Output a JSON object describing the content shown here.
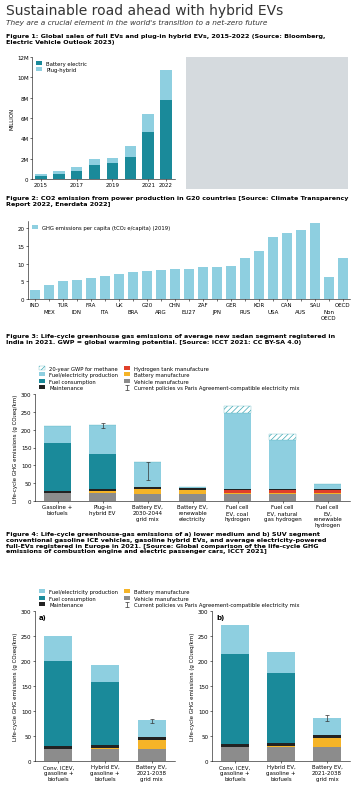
{
  "title": "Sustainable road ahead with hybrid EVs",
  "subtitle": "They are a crucial element in the world's transition to a net-zero future",
  "chart_data": [
    {
      "type": "bar",
      "stacked": true,
      "title": "Figure 1: Global sales of full EVs and plug-in hybrid EVs, 2015-2022 (Source: Bloomberg, Electric Vehicle Outlook 2023)",
      "y_label": "MILLION",
      "categories": [
        "2015",
        null,
        "2017",
        null,
        "2019",
        null,
        "2021",
        "2022"
      ],
      "series": [
        {
          "name": "Battery electric",
          "color": "#1a8a9a",
          "values": [
            0.3,
            0.45,
            0.8,
            1.4,
            1.6,
            2.2,
            4.6,
            7.8
          ]
        },
        {
          "name": "Plug-hybrid",
          "color": "#8ecfe0",
          "values": [
            0.2,
            0.3,
            0.4,
            0.6,
            0.5,
            1.0,
            1.8,
            2.9
          ]
        }
      ],
      "ylim": [
        0,
        12
      ],
      "yticks": [
        0,
        {
          "value": 2,
          "label": "2M"
        },
        {
          "value": 4,
          "label": "4M"
        },
        {
          "value": 6,
          "label": "6M"
        },
        {
          "value": 8,
          "label": "8M"
        },
        {
          "value": 10,
          "label": "10M"
        },
        {
          "value": 12,
          "label": "12M"
        }
      ],
      "legend": "upper left"
    },
    {
      "type": "bar",
      "stacked": false,
      "title": "Figure 2: CO2 emission from power production in G20 countries [Source: Climate Transparency Report 2022, Enerdata 2022]",
      "categories": [
        "IND",
        "MEX",
        "TUR",
        "IDN",
        "FRA",
        "ITA",
        "UK",
        "BRA",
        "G20",
        "ARG",
        "CHN",
        "EU27",
        "ZAF",
        "JPN",
        "GER",
        "RUS",
        "KOR",
        "USA",
        "CAN",
        "AUS",
        "SAU",
        "Non OECD",
        "OECD"
      ],
      "series": [
        {
          "name": "GHG emissions per capita (tCO₂ e/capita) (2019)",
          "color": "#8ecfe0",
          "values": [
            2.5,
            4,
            5,
            5.5,
            6,
            6.5,
            7,
            7.5,
            8,
            8.2,
            8.5,
            8.5,
            9,
            9,
            9.2,
            11.5,
            13.5,
            17.5,
            18.5,
            19.5,
            21.5,
            6.3,
            11.5
          ]
        }
      ],
      "ylim": [
        0,
        22
      ],
      "yticks": [
        0,
        5,
        10,
        15,
        20
      ],
      "legend": "upper left"
    },
    {
      "type": "bar",
      "stacked": true,
      "title": "Figure 3: Life-cycle greenhouse gas emissions of average new sedan segment registered in India in 2021. GWP = global warming potential. [Source: ICCT 2021: CC BY-SA 4.0)",
      "y_label": "Life-cycle GHG emissions (g CO₂eq/km)",
      "categories": [
        "Gasoline + biofuels",
        "Plug-in hybrid EV",
        "Battery EV, 2030-2044 grid mix",
        "Battery EV, renewable electricity",
        "Fuel cell EV, coal hydrogen",
        "Fuel cell EV, natural gas hydrogen",
        "Fuel cell EV, renewable hydrogen"
      ],
      "series": [
        {
          "name": "Vehicle manufacture",
          "color": "#8c8c8c",
          "values": [
            22,
            22,
            20,
            20,
            20,
            20,
            20
          ]
        },
        {
          "name": "Battery manufacture",
          "color": "#f5b428",
          "values": [
            0,
            6,
            14,
            12,
            3,
            3,
            3
          ]
        },
        {
          "name": "Hydrogen tank manufacture",
          "color": "#e0402a",
          "values": [
            0,
            0,
            0,
            0,
            8,
            8,
            8
          ]
        },
        {
          "name": "Maintenance",
          "color": "#222222",
          "values": [
            5,
            5,
            4,
            4,
            4,
            4,
            4
          ]
        },
        {
          "name": "Fuel consumption",
          "color": "#1a8a9a",
          "values": [
            135,
            100,
            0,
            0,
            0,
            0,
            0
          ]
        },
        {
          "name": "Fuel/electricity production",
          "color": "#8ecfe0",
          "values": [
            48,
            79,
            70,
            3,
            213,
            135,
            12
          ]
        },
        {
          "name": "20-year GWP for methane",
          "color": "#3fa9b5",
          "line_style": "hatched",
          "values": [
            0,
            0,
            0,
            0,
            17,
            18,
            0
          ]
        }
      ],
      "error_ranges": [
        null,
        [
          204,
          218
        ],
        [
          60,
          108
        ],
        null,
        null,
        null,
        null
      ],
      "error_label": "Current policies vs Paris Agreement-compatible electricity mix",
      "ylim": [
        0,
        300
      ],
      "yticks": [
        0,
        50,
        100,
        150,
        200,
        250,
        300
      ],
      "legend": "lower left"
    },
    {
      "type": "bar",
      "stacked": true,
      "title": "Figure 4: Life-cycle greenhouse-gas emissions of a) lower medium and b) SUV segment conventional gasoline ICE vehicles, gasoline hybrid EVs, and average electricity-powered full-EVs registered in Europe in 2021. [Source: Global comparison of the life-cycle GHG emissions of combustion engine and electric passenger cars, ICCT 2021]",
      "annotations": [
        "a)"
      ],
      "y_label": "Life-cycle GHG emissions (g CO₂eq/km)",
      "categories": [
        "Conv. ICEV, gasoline + biofuels",
        "Hybrid EV, gasoline + biofuels",
        "Battery EV, 2021-2038 grid mix"
      ],
      "series": [
        {
          "name": "Vehicle manufacture",
          "color": "#8c8c8c",
          "values": [
            25,
            25,
            25
          ]
        },
        {
          "name": "Battery manufacture",
          "color": "#f5b428",
          "values": [
            0,
            2,
            17
          ]
        },
        {
          "name": "Maintenance",
          "color": "#222222",
          "values": [
            6,
            6,
            6
          ]
        },
        {
          "name": "Fuel consumption",
          "color": "#1a8a9a",
          "values": [
            170,
            125,
            0
          ]
        },
        {
          "name": "Fuel/electricity production",
          "color": "#8ecfe0",
          "values": [
            50,
            35,
            34
          ]
        }
      ],
      "error_ranges": [
        null,
        null,
        [
          76,
          84
        ]
      ],
      "error_label": "Current policies vs Paris Agreement-compatible electricity mix",
      "ylim": [
        0,
        300
      ],
      "yticks": [
        0,
        50,
        100,
        150,
        200,
        250,
        300
      ],
      "legend": "lower left"
    },
    {
      "type": "bar",
      "stacked": true,
      "annotations": [
        "b)"
      ],
      "y_label": "Life-cycle GHG emissions (g CO₂eq/km)",
      "categories": [
        "Conv. ICEV, gasoline + biofuels",
        "Hybrid EV, gasoline + biofuels",
        "Battery EV, 2021-2038 grid mix"
      ],
      "series": [
        {
          "name": "Vehicle manufacture",
          "color": "#8c8c8c",
          "values": [
            28,
            28,
            28
          ]
        },
        {
          "name": "Battery manufacture",
          "color": "#f5b428",
          "values": [
            0,
            3,
            18
          ]
        },
        {
          "name": "Maintenance",
          "color": "#222222",
          "values": [
            6,
            6,
            6
          ]
        },
        {
          "name": "Fuel consumption",
          "color": "#1a8a9a",
          "values": [
            180,
            140,
            0
          ]
        },
        {
          "name": "Fuel/electricity production",
          "color": "#8ecfe0",
          "values": [
            58,
            42,
            35
          ]
        }
      ],
      "error_ranges": [
        null,
        null,
        [
          80,
          92
        ]
      ],
      "ylim": [
        0,
        300
      ],
      "yticks": [
        0,
        50,
        100,
        150,
        200,
        250,
        300
      ]
    }
  ]
}
